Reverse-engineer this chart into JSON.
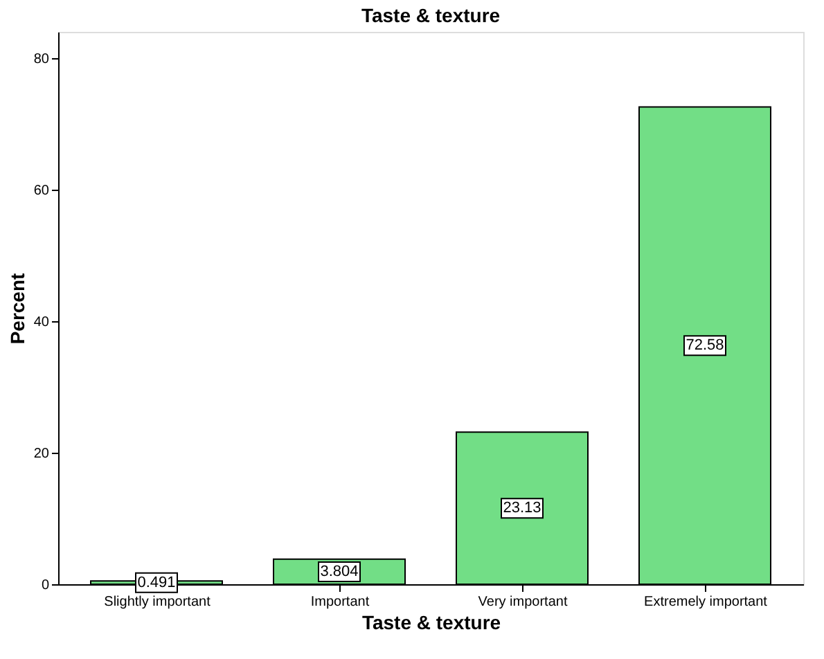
{
  "chart_data": {
    "type": "bar",
    "title": "Taste & texture",
    "xlabel": "Taste & texture",
    "ylabel": "Percent",
    "categories": [
      "Slightly important",
      "Important",
      "Very important",
      "Extremely important"
    ],
    "values": [
      0.491,
      3.804,
      23.13,
      72.58
    ],
    "color": "#72de86",
    "ylim": [
      0,
      84
    ],
    "yticks": [
      0,
      20,
      40,
      60,
      80
    ],
    "grid": false,
    "data_labels": true
  }
}
